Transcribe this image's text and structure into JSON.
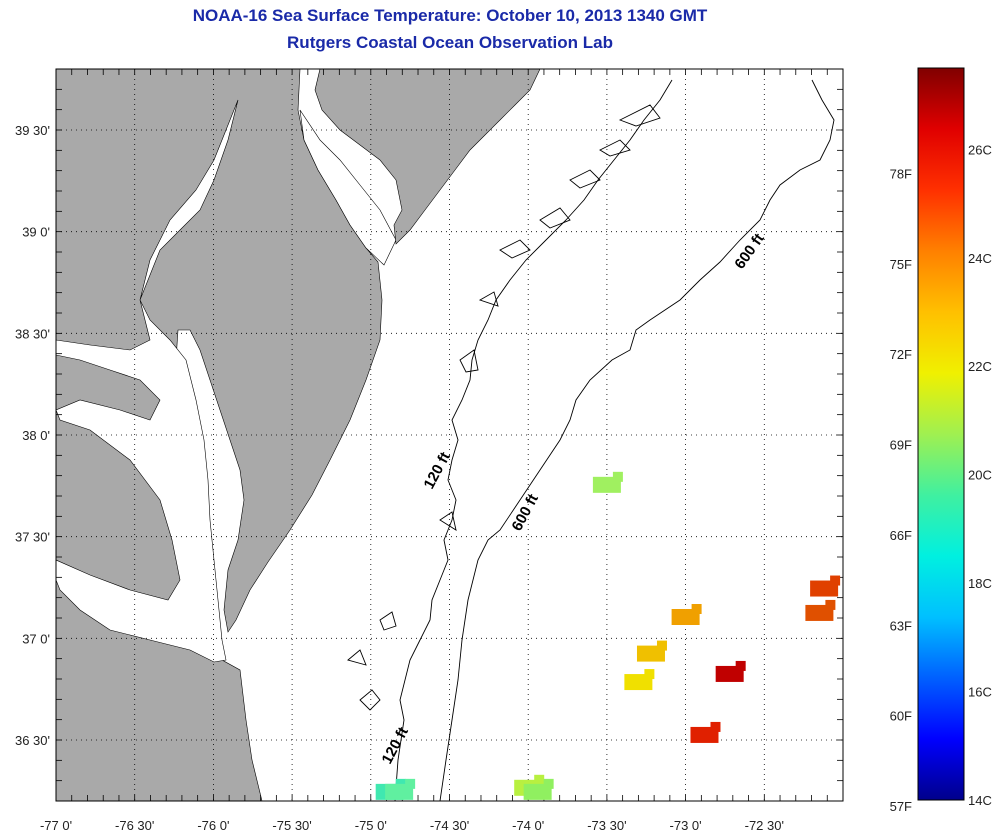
{
  "header": {
    "title": "NOAA-16 Sea Surface Temperature:  October 10, 2013 1340 GMT",
    "subtitle": "Rutgers Coastal Ocean Observation Lab"
  },
  "map": {
    "lon_range": [
      -77.0,
      -72.0
    ],
    "lat_range": [
      36.2,
      39.8
    ],
    "lon_ticks": [
      -77.0,
      -76.5,
      -76.0,
      -75.5,
      -75.0,
      -74.5,
      -74.0,
      -73.5,
      -73.0,
      -72.5
    ],
    "lon_tick_labels": [
      "-77 0'",
      "-76 30'",
      "-76 0'",
      "-75 30'",
      "-75 0'",
      "-74 30'",
      "-74 0'",
      "-73 30'",
      "-73 0'",
      "-72 30'"
    ],
    "lat_ticks": [
      39.5,
      39.0,
      38.5,
      38.0,
      37.5,
      37.0,
      36.5
    ],
    "lat_tick_labels": [
      "39 30'",
      "39 0'",
      "38 30'",
      "38 0'",
      "37 30'",
      "37 0'",
      "36 30'"
    ],
    "grid": "dotted",
    "contour_labels": [
      "120 ft",
      "600 ft",
      "600 ft",
      "120 ft"
    ],
    "sst_patches": [
      {
        "lon": -74.88,
        "lat": 36.24,
        "color": "#40e8b0"
      },
      {
        "lon": -74.82,
        "lat": 36.24,
        "color": "#60f0a0"
      },
      {
        "lon": -74.0,
        "lat": 36.26,
        "color": "#b8f040"
      },
      {
        "lon": -73.94,
        "lat": 36.24,
        "color": "#90f060"
      },
      {
        "lon": -73.5,
        "lat": 37.75,
        "color": "#a0f060"
      },
      {
        "lon": -73.22,
        "lat": 36.92,
        "color": "#f0c000"
      },
      {
        "lon": -73.3,
        "lat": 36.78,
        "color": "#f0e000"
      },
      {
        "lon": -73.0,
        "lat": 37.1,
        "color": "#f0a000"
      },
      {
        "lon": -72.88,
        "lat": 36.52,
        "color": "#e02000"
      },
      {
        "lon": -72.72,
        "lat": 36.82,
        "color": "#c00000"
      },
      {
        "lon": -72.12,
        "lat": 37.24,
        "color": "#e04000"
      },
      {
        "lon": -72.15,
        "lat": 37.12,
        "color": "#e05000"
      }
    ]
  },
  "colorbar": {
    "colors": [
      "#00008b",
      "#0000ff",
      "#0060ff",
      "#00c0ff",
      "#00f0e0",
      "#40f0a0",
      "#a0f050",
      "#f0f000",
      "#ffc000",
      "#ff8000",
      "#ff3000",
      "#e00000",
      "#800000"
    ],
    "fahrenheit_labels": [
      "78F",
      "75F",
      "72F",
      "69F",
      "66F",
      "63F",
      "60F",
      "57F"
    ],
    "fahrenheit_values": [
      78,
      75,
      72,
      69,
      66,
      63,
      60,
      57
    ],
    "celsius_labels": [
      "26C",
      "24C",
      "22C",
      "20C",
      "18C",
      "16C",
      "14C"
    ],
    "celsius_values": [
      26,
      24,
      22,
      20,
      18,
      16,
      14
    ],
    "range_c": [
      14,
      27.5
    ]
  }
}
